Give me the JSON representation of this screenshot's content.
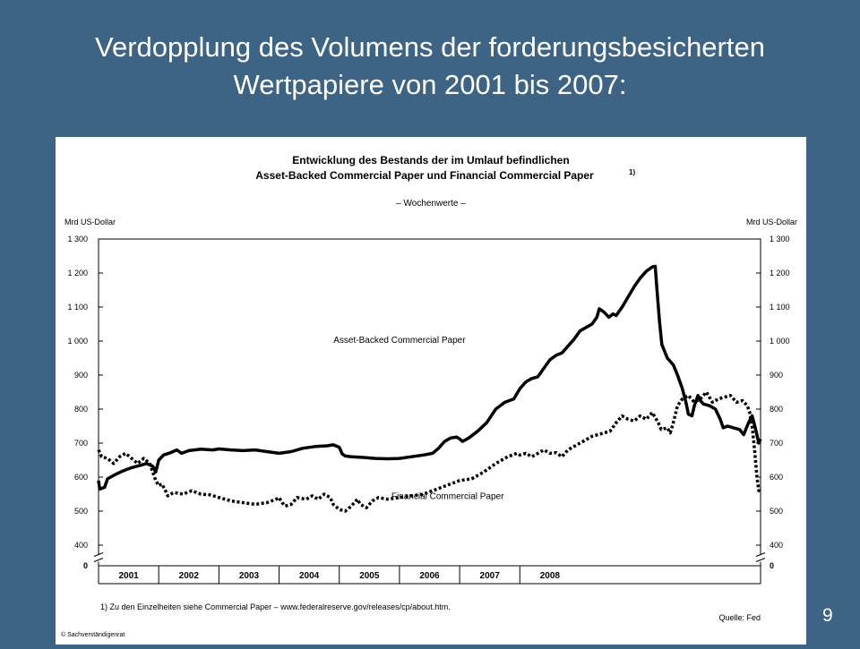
{
  "slide": {
    "title_line1": "Verdopplung  des Volumens der forderungsbesicherten",
    "title_line2": "Wertpapiere von 2001 bis 2007:",
    "page_number": "9"
  },
  "colors": {
    "background": "#3d6385",
    "panel": "#ffffff",
    "ink": "#000000"
  },
  "chart_data": {
    "type": "line",
    "title_line1": "Entwicklung des Bestands der im Umlauf befindlichen",
    "title_line2": "Asset-Backed Commercial Paper und Financial Commercial Paper",
    "title_footnote": "1)",
    "subtitle": "– Wochenwerte –",
    "ylabel_left": "Mrd US-Dollar",
    "ylabel_right": "Mrd US-Dollar",
    "yticks": [
      0,
      400,
      500,
      600,
      700,
      800,
      900,
      1000,
      1100,
      1200,
      1300
    ],
    "ytick_labels": [
      "0",
      "400",
      "500",
      "600",
      "700",
      "800",
      "900",
      "1 000",
      "1 100",
      "1 200",
      "1 300"
    ],
    "ylim": [
      0,
      1300
    ],
    "axis_break": true,
    "x_categories": [
      "2001",
      "2002",
      "2003",
      "2004",
      "2005",
      "2006",
      "2007",
      "2008"
    ],
    "xlim": [
      2001.0,
      2008.85
    ],
    "grid": false,
    "series": [
      {
        "name": "Asset-Backed Commercial Paper",
        "style": "solid",
        "points": [
          [
            2001.0,
            590
          ],
          [
            2001.02,
            565
          ],
          [
            2001.1,
            570
          ],
          [
            2001.15,
            595
          ],
          [
            2001.25,
            605
          ],
          [
            2001.4,
            618
          ],
          [
            2001.55,
            628
          ],
          [
            2001.7,
            635
          ],
          [
            2001.8,
            640
          ],
          [
            2001.9,
            632
          ],
          [
            2001.95,
            615
          ],
          [
            2002.0,
            650
          ],
          [
            2002.08,
            665
          ],
          [
            2002.2,
            672
          ],
          [
            2002.3,
            680
          ],
          [
            2002.38,
            670
          ],
          [
            2002.5,
            678
          ],
          [
            2002.7,
            682
          ],
          [
            2002.9,
            680
          ],
          [
            2003.0,
            683
          ],
          [
            2003.2,
            680
          ],
          [
            2003.4,
            678
          ],
          [
            2003.6,
            680
          ],
          [
            2003.8,
            675
          ],
          [
            2004.0,
            670
          ],
          [
            2004.2,
            675
          ],
          [
            2004.4,
            685
          ],
          [
            2004.6,
            690
          ],
          [
            2004.8,
            692
          ],
          [
            2004.9,
            695
          ],
          [
            2005.0,
            688
          ],
          [
            2005.05,
            668
          ],
          [
            2005.1,
            662
          ],
          [
            2005.2,
            660
          ],
          [
            2005.4,
            658
          ],
          [
            2005.6,
            655
          ],
          [
            2005.8,
            654
          ],
          [
            2006.0,
            655
          ],
          [
            2006.2,
            660
          ],
          [
            2006.4,
            665
          ],
          [
            2006.55,
            670
          ],
          [
            2006.65,
            685
          ],
          [
            2006.75,
            705
          ],
          [
            2006.85,
            715
          ],
          [
            2006.95,
            718
          ],
          [
            2007.0,
            712
          ],
          [
            2007.05,
            705
          ],
          [
            2007.15,
            715
          ],
          [
            2007.3,
            735
          ],
          [
            2007.45,
            760
          ],
          [
            2007.6,
            800
          ],
          [
            2007.75,
            820
          ],
          [
            2007.9,
            830
          ],
          [
            2008.0,
            860
          ],
          [
            2008.1,
            880
          ],
          [
            2008.2,
            890
          ],
          [
            2008.3,
            895
          ],
          [
            2008.4,
            920
          ],
          [
            2008.5,
            945
          ],
          [
            2008.6,
            958
          ],
          [
            2008.7,
            965
          ],
          [
            2008.8,
            985
          ],
          [
            2008.9,
            1005
          ],
          [
            2009.0,
            1030
          ],
          [
            2009.1,
            1040
          ],
          [
            2009.2,
            1050
          ],
          [
            2009.28,
            1070
          ],
          [
            2009.32,
            1095
          ],
          [
            2009.4,
            1085
          ],
          [
            2009.48,
            1070
          ],
          [
            2009.55,
            1080
          ],
          [
            2009.6,
            1075
          ],
          [
            2009.7,
            1100
          ],
          [
            2009.8,
            1130
          ],
          [
            2009.9,
            1160
          ],
          [
            2010.0,
            1185
          ],
          [
            2010.1,
            1205
          ],
          [
            2010.2,
            1218
          ],
          [
            2010.25,
            1220
          ],
          [
            2010.28,
            1150
          ],
          [
            2010.32,
            1060
          ],
          [
            2010.36,
            990
          ],
          [
            2010.45,
            950
          ],
          [
            2010.55,
            930
          ],
          [
            2010.62,
            900
          ],
          [
            2010.7,
            860
          ],
          [
            2010.76,
            820
          ],
          [
            2010.8,
            785
          ],
          [
            2010.86,
            780
          ],
          [
            2010.9,
            810
          ],
          [
            2010.96,
            840
          ],
          [
            2011.0,
            825
          ],
          [
            2011.05,
            815
          ],
          [
            2011.15,
            810
          ],
          [
            2011.25,
            800
          ],
          [
            2011.33,
            770
          ],
          [
            2011.38,
            745
          ],
          [
            2011.45,
            750
          ],
          [
            2011.55,
            745
          ],
          [
            2011.65,
            740
          ],
          [
            2011.72,
            725
          ],
          [
            2011.8,
            760
          ],
          [
            2011.86,
            780
          ],
          [
            2011.92,
            740
          ],
          [
            2011.97,
            700
          ],
          [
            2012.0,
            712
          ]
        ]
      },
      {
        "name": "Financial Commercial Paper",
        "style": "dotted",
        "points": [
          [
            2001.0,
            680
          ],
          [
            2001.05,
            660
          ],
          [
            2001.15,
            655
          ],
          [
            2001.25,
            640
          ],
          [
            2001.35,
            660
          ],
          [
            2001.45,
            670
          ],
          [
            2001.55,
            655
          ],
          [
            2001.65,
            640
          ],
          [
            2001.75,
            655
          ],
          [
            2001.85,
            640
          ],
          [
            2001.95,
            590
          ],
          [
            2002.0,
            575
          ],
          [
            2002.05,
            580
          ],
          [
            2002.1,
            565
          ],
          [
            2002.15,
            545
          ],
          [
            2002.25,
            555
          ],
          [
            2002.4,
            550
          ],
          [
            2002.55,
            560
          ],
          [
            2002.7,
            550
          ],
          [
            2002.85,
            548
          ],
          [
            2003.0,
            540
          ],
          [
            2003.2,
            530
          ],
          [
            2003.4,
            525
          ],
          [
            2003.6,
            520
          ],
          [
            2003.8,
            525
          ],
          [
            2003.95,
            535
          ],
          [
            2004.0,
            540
          ],
          [
            2004.05,
            525
          ],
          [
            2004.1,
            515
          ],
          [
            2004.2,
            520
          ],
          [
            2004.3,
            540
          ],
          [
            2004.45,
            535
          ],
          [
            2004.55,
            545
          ],
          [
            2004.65,
            535
          ],
          [
            2004.75,
            550
          ],
          [
            2004.85,
            540
          ],
          [
            2004.9,
            520
          ],
          [
            2005.0,
            505
          ],
          [
            2005.1,
            500
          ],
          [
            2005.2,
            515
          ],
          [
            2005.3,
            535
          ],
          [
            2005.35,
            520
          ],
          [
            2005.45,
            510
          ],
          [
            2005.55,
            530
          ],
          [
            2005.65,
            540
          ],
          [
            2005.8,
            535
          ],
          [
            2006.0,
            540
          ],
          [
            2006.2,
            545
          ],
          [
            2006.4,
            550
          ],
          [
            2006.55,
            560
          ],
          [
            2006.7,
            570
          ],
          [
            2006.85,
            580
          ],
          [
            2007.0,
            590
          ],
          [
            2007.2,
            595
          ],
          [
            2007.4,
            615
          ],
          [
            2007.6,
            640
          ],
          [
            2007.8,
            660
          ],
          [
            2007.95,
            670
          ],
          [
            2008.0,
            665
          ],
          [
            2008.1,
            670
          ],
          [
            2008.2,
            660
          ],
          [
            2008.3,
            670
          ],
          [
            2008.4,
            680
          ],
          [
            2008.5,
            670
          ],
          [
            2008.6,
            672
          ],
          [
            2008.7,
            660
          ],
          [
            2008.8,
            680
          ],
          [
            2008.9,
            690
          ],
          [
            2009.0,
            700
          ],
          [
            2009.1,
            710
          ],
          [
            2009.2,
            720
          ],
          [
            2009.3,
            725
          ],
          [
            2009.4,
            730
          ],
          [
            2009.5,
            735
          ],
          [
            2009.6,
            760
          ],
          [
            2009.7,
            780
          ],
          [
            2009.8,
            770
          ],
          [
            2009.9,
            765
          ],
          [
            2010.0,
            780
          ],
          [
            2010.1,
            770
          ],
          [
            2010.2,
            790
          ],
          [
            2010.3,
            760
          ],
          [
            2010.35,
            740
          ],
          [
            2010.45,
            745
          ],
          [
            2010.5,
            730
          ],
          [
            2010.55,
            760
          ],
          [
            2010.62,
            810
          ],
          [
            2010.7,
            830
          ],
          [
            2010.8,
            840
          ],
          [
            2010.9,
            820
          ],
          [
            2011.0,
            830
          ],
          [
            2011.1,
            850
          ],
          [
            2011.2,
            820
          ],
          [
            2011.3,
            830
          ],
          [
            2011.4,
            835
          ],
          [
            2011.5,
            840
          ],
          [
            2011.6,
            820
          ],
          [
            2011.7,
            825
          ],
          [
            2011.78,
            810
          ],
          [
            2011.82,
            790
          ],
          [
            2011.86,
            750
          ],
          [
            2011.9,
            680
          ],
          [
            2011.94,
            600
          ],
          [
            2011.97,
            560
          ],
          [
            2012.0,
            570
          ]
        ]
      }
    ],
    "annotations": [
      {
        "text": "Asset-Backed Commercial Paper",
        "x": 2006.0,
        "y": 995
      },
      {
        "text": "Financial Commercial Paper",
        "x": 2006.8,
        "y": 535
      }
    ],
    "footnote": "1) Zu den Einzelheiten siehe Commercial Paper – www.federalreserve.gov/releases/cp/about.htm.",
    "source": "Quelle: Fed",
    "copyright": "© Sachverständigenrat"
  }
}
